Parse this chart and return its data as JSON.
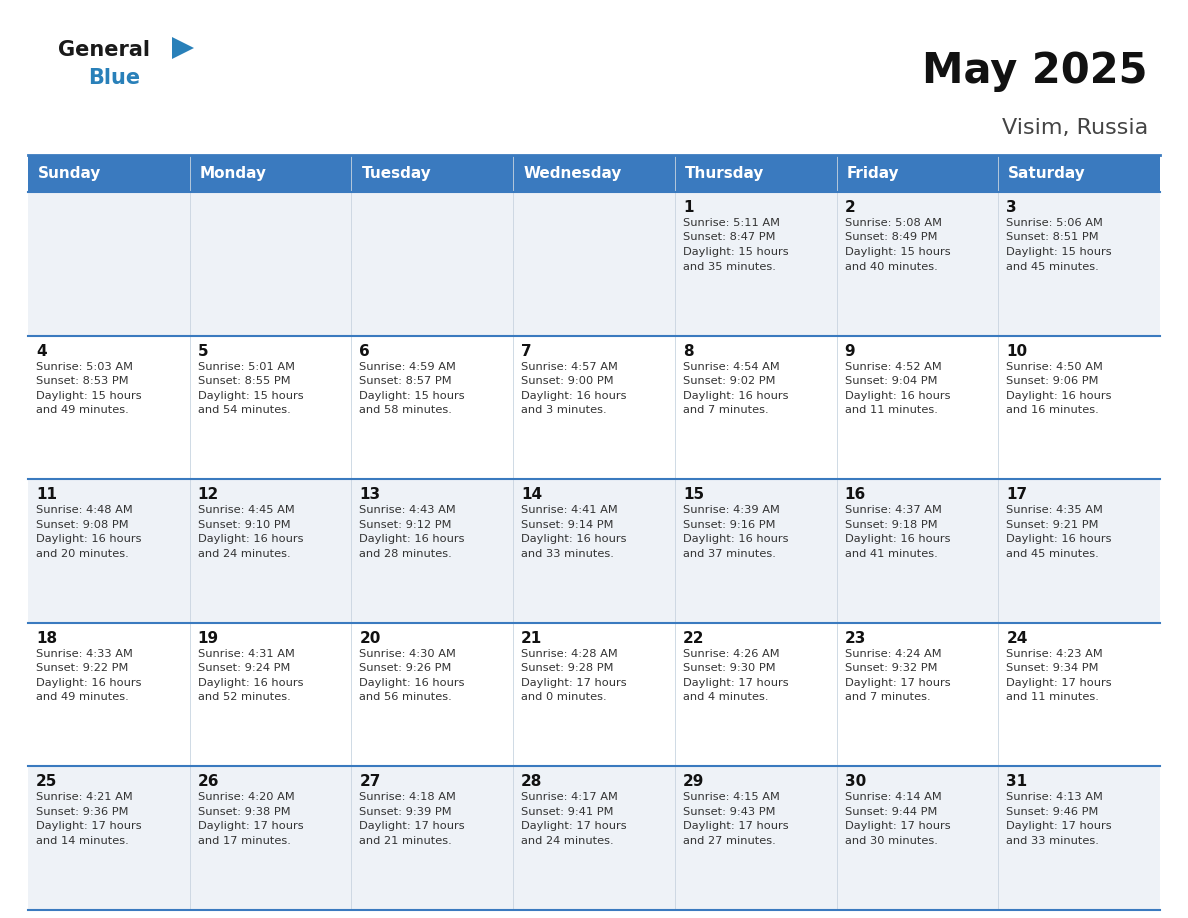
{
  "title": "May 2025",
  "subtitle": "Visim, Russia",
  "header_bg": "#3a7abf",
  "header_text": "#ffffff",
  "day_names": [
    "Sunday",
    "Monday",
    "Tuesday",
    "Wednesday",
    "Thursday",
    "Friday",
    "Saturday"
  ],
  "row_bg_odd": "#eef2f7",
  "row_bg_even": "#ffffff",
  "cell_border_color": "#3a7abf",
  "title_color": "#111111",
  "subtitle_color": "#444444",
  "number_color": "#111111",
  "info_color": "#333333",
  "logo_general_color": "#1a1a1a",
  "logo_blue_color": "#2980b9",
  "calendar": [
    [
      null,
      null,
      null,
      null,
      {
        "day": 1,
        "rise": "5:11 AM",
        "set": "8:47 PM",
        "hours": 15,
        "mins": 35
      },
      {
        "day": 2,
        "rise": "5:08 AM",
        "set": "8:49 PM",
        "hours": 15,
        "mins": 40
      },
      {
        "day": 3,
        "rise": "5:06 AM",
        "set": "8:51 PM",
        "hours": 15,
        "mins": 45
      }
    ],
    [
      {
        "day": 4,
        "rise": "5:03 AM",
        "set": "8:53 PM",
        "hours": 15,
        "mins": 49
      },
      {
        "day": 5,
        "rise": "5:01 AM",
        "set": "8:55 PM",
        "hours": 15,
        "mins": 54
      },
      {
        "day": 6,
        "rise": "4:59 AM",
        "set": "8:57 PM",
        "hours": 15,
        "mins": 58
      },
      {
        "day": 7,
        "rise": "4:57 AM",
        "set": "9:00 PM",
        "hours": 16,
        "mins": 3
      },
      {
        "day": 8,
        "rise": "4:54 AM",
        "set": "9:02 PM",
        "hours": 16,
        "mins": 7
      },
      {
        "day": 9,
        "rise": "4:52 AM",
        "set": "9:04 PM",
        "hours": 16,
        "mins": 11
      },
      {
        "day": 10,
        "rise": "4:50 AM",
        "set": "9:06 PM",
        "hours": 16,
        "mins": 16
      }
    ],
    [
      {
        "day": 11,
        "rise": "4:48 AM",
        "set": "9:08 PM",
        "hours": 16,
        "mins": 20
      },
      {
        "day": 12,
        "rise": "4:45 AM",
        "set": "9:10 PM",
        "hours": 16,
        "mins": 24
      },
      {
        "day": 13,
        "rise": "4:43 AM",
        "set": "9:12 PM",
        "hours": 16,
        "mins": 28
      },
      {
        "day": 14,
        "rise": "4:41 AM",
        "set": "9:14 PM",
        "hours": 16,
        "mins": 33
      },
      {
        "day": 15,
        "rise": "4:39 AM",
        "set": "9:16 PM",
        "hours": 16,
        "mins": 37
      },
      {
        "day": 16,
        "rise": "4:37 AM",
        "set": "9:18 PM",
        "hours": 16,
        "mins": 41
      },
      {
        "day": 17,
        "rise": "4:35 AM",
        "set": "9:21 PM",
        "hours": 16,
        "mins": 45
      }
    ],
    [
      {
        "day": 18,
        "rise": "4:33 AM",
        "set": "9:22 PM",
        "hours": 16,
        "mins": 49
      },
      {
        "day": 19,
        "rise": "4:31 AM",
        "set": "9:24 PM",
        "hours": 16,
        "mins": 52
      },
      {
        "day": 20,
        "rise": "4:30 AM",
        "set": "9:26 PM",
        "hours": 16,
        "mins": 56
      },
      {
        "day": 21,
        "rise": "4:28 AM",
        "set": "9:28 PM",
        "hours": 17,
        "mins": 0
      },
      {
        "day": 22,
        "rise": "4:26 AM",
        "set": "9:30 PM",
        "hours": 17,
        "mins": 4
      },
      {
        "day": 23,
        "rise": "4:24 AM",
        "set": "9:32 PM",
        "hours": 17,
        "mins": 7
      },
      {
        "day": 24,
        "rise": "4:23 AM",
        "set": "9:34 PM",
        "hours": 17,
        "mins": 11
      }
    ],
    [
      {
        "day": 25,
        "rise": "4:21 AM",
        "set": "9:36 PM",
        "hours": 17,
        "mins": 14
      },
      {
        "day": 26,
        "rise": "4:20 AM",
        "set": "9:38 PM",
        "hours": 17,
        "mins": 17
      },
      {
        "day": 27,
        "rise": "4:18 AM",
        "set": "9:39 PM",
        "hours": 17,
        "mins": 21
      },
      {
        "day": 28,
        "rise": "4:17 AM",
        "set": "9:41 PM",
        "hours": 17,
        "mins": 24
      },
      {
        "day": 29,
        "rise": "4:15 AM",
        "set": "9:43 PM",
        "hours": 17,
        "mins": 27
      },
      {
        "day": 30,
        "rise": "4:14 AM",
        "set": "9:44 PM",
        "hours": 17,
        "mins": 30
      },
      {
        "day": 31,
        "rise": "4:13 AM",
        "set": "9:46 PM",
        "hours": 17,
        "mins": 33
      }
    ]
  ]
}
